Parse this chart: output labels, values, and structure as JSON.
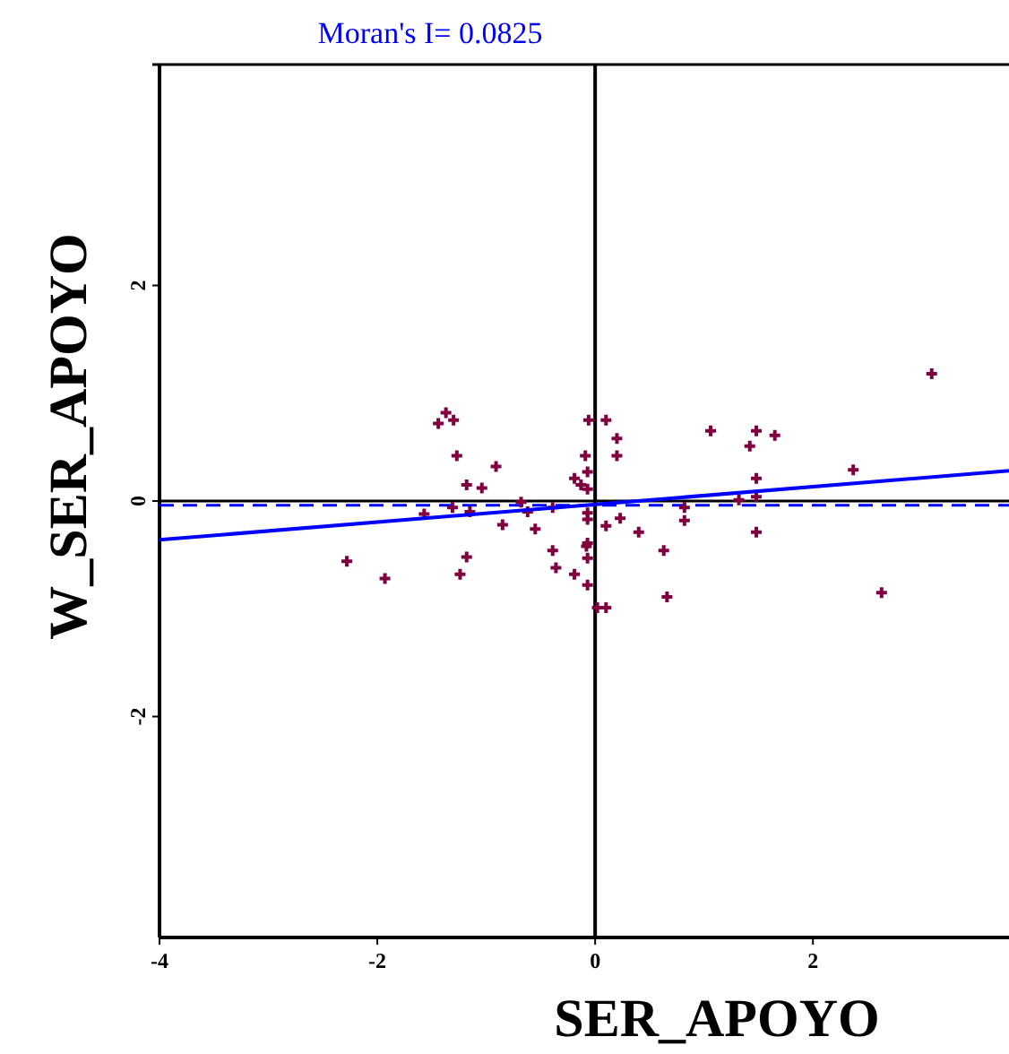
{
  "chart_data": {
    "type": "scatter",
    "title": "Moran's I= 0.0825",
    "xlabel": "SER_APOYO",
    "ylabel": "W_SER_APOYO",
    "xlim": [
      -4,
      3.8
    ],
    "ylim": [
      -4.05,
      4.05
    ],
    "xticks": [
      -4,
      -2,
      0,
      2
    ],
    "yticks": [
      -2,
      0,
      2
    ],
    "marker": "cross",
    "grid": false,
    "series": [
      {
        "color": "#800040",
        "x": [
          -1.44,
          -1.37,
          -1.3,
          -1.27,
          -0.91,
          -1.18,
          -1.04,
          -1.57,
          -1.31,
          -1.15,
          -0.85,
          -0.55,
          -0.62,
          -0.68,
          -0.39,
          -2.28,
          -1.93,
          -1.18,
          -1.24,
          -0.39,
          -0.36,
          -0.19,
          -0.07,
          -0.06,
          -0.09,
          -0.07,
          -0.19,
          -0.13,
          -0.07,
          -0.07,
          -0.07,
          -0.07,
          -0.08,
          -0.07,
          0.02,
          0.1,
          0.1,
          0.2,
          0.2,
          0.23,
          0.1,
          0.4,
          0.63,
          0.66,
          0.82,
          0.82,
          1.06,
          1.32,
          1.42,
          1.48,
          1.65,
          1.48,
          1.48,
          1.48,
          2.37,
          3.09,
          2.63
        ],
        "values": [
          0.72,
          0.82,
          0.75,
          0.42,
          0.32,
          0.15,
          0.12,
          -0.12,
          -0.06,
          -0.1,
          -0.22,
          -0.26,
          -0.1,
          -0.01,
          -0.06,
          -0.56,
          -0.72,
          -0.52,
          -0.68,
          -0.46,
          -0.62,
          -0.68,
          -0.78,
          0.75,
          0.42,
          0.27,
          0.21,
          0.15,
          0.11,
          -0.11,
          -0.17,
          -0.39,
          -0.42,
          -0.53,
          -0.99,
          -0.99,
          0.75,
          0.58,
          0.42,
          -0.16,
          -0.23,
          -0.29,
          -0.46,
          -0.89,
          -0.06,
          -0.18,
          0.65,
          0.01,
          0.51,
          0.65,
          0.61,
          0.21,
          0.04,
          -0.29,
          0.29,
          1.18,
          -0.85
        ]
      },
      {
        "type": "line",
        "marker": "none",
        "color": "#0000ff",
        "x": [
          -4,
          3.8
        ],
        "values": [
          -0.36,
          0.28
        ]
      }
    ],
    "ref_lines": [
      {
        "axis": "x",
        "value": 0,
        "color": "#000000",
        "line_style": "solid"
      },
      {
        "axis": "y",
        "value": 0,
        "color": "#000000",
        "line_style": "solid"
      },
      {
        "axis": "y",
        "value": -0.04,
        "color": "#0000ff",
        "line_style": "dashed"
      }
    ]
  }
}
